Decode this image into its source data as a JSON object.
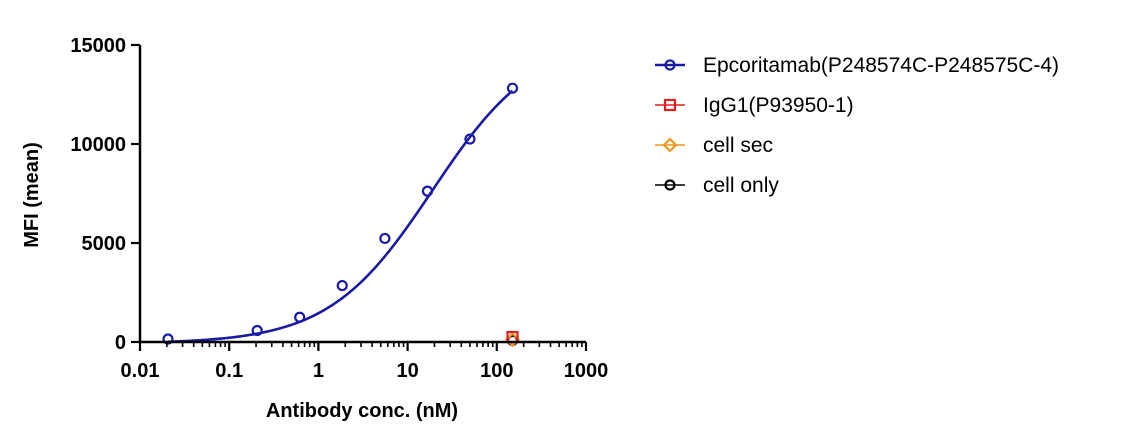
{
  "chart_data": {
    "type": "scatter",
    "title": "",
    "xlabel": "Antibody conc. (nM)",
    "ylabel": "MFI (mean)",
    "xscale": "log",
    "xlim": [
      0.01,
      1000
    ],
    "ylim": [
      0,
      15000
    ],
    "x_ticks": [
      0.01,
      0.1,
      1,
      10,
      100,
      1000
    ],
    "x_tick_labels": [
      "0.01",
      "0.1",
      "1",
      "10",
      "100",
      "1000"
    ],
    "y_ticks": [
      0,
      5000,
      10000,
      15000
    ],
    "y_tick_labels": [
      "0",
      "5000",
      "10000",
      "15000"
    ],
    "grid": false,
    "legend_position": "right",
    "series": [
      {
        "name": "Epcoritamab(P248574C-P248575C-4)",
        "color": "#1a1aa6",
        "marker": "circle",
        "fit_curve": true,
        "x": [
          0.0206,
          0.206,
          0.617,
          1.85,
          5.56,
          16.7,
          50,
          150
        ],
        "y": [
          150,
          580,
          1250,
          2850,
          5230,
          7620,
          10250,
          12820
        ]
      },
      {
        "name": "IgG1(P93950-1)",
        "color": "#e01e1e",
        "marker": "square",
        "fit_curve": false,
        "x": [
          150
        ],
        "y": [
          250
        ]
      },
      {
        "name": "cell sec",
        "color": "#f0961e",
        "marker": "diamond",
        "fit_curve": false,
        "x": [
          150
        ],
        "y": [
          120
        ]
      },
      {
        "name": "cell only",
        "color": "#000000",
        "marker": "circle",
        "fit_curve": false,
        "x": [
          150
        ],
        "y": [
          80
        ]
      }
    ],
    "fit": {
      "model": "4PL",
      "bottom": -80,
      "top": 15400,
      "ec50": 19,
      "hill": 0.75
    }
  }
}
